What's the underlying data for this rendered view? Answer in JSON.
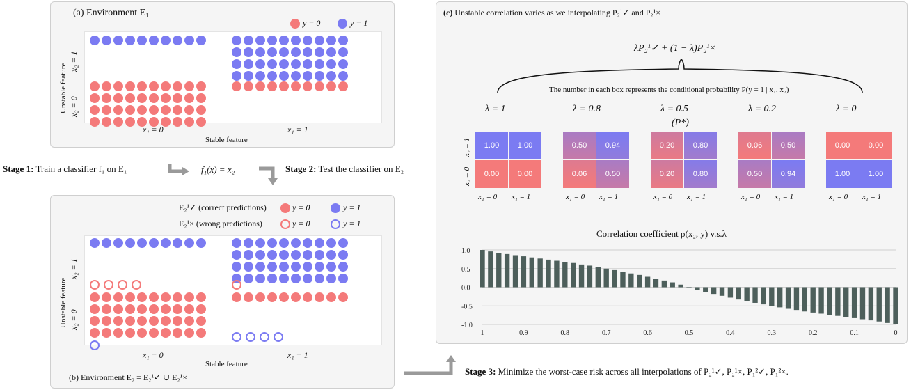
{
  "colors": {
    "red": "#f47a7a",
    "blue": "#7b7bf2",
    "bar": "#4d5f5b",
    "panel": "#f5f5f5"
  },
  "panel_a": {
    "title": "(a) Environment E₁",
    "legend_red": "y = 0",
    "legend_blue": "y = 1",
    "ylabel": "Unstable feature",
    "y_tick_top": "x₂ = 1",
    "y_tick_bottom": "x₂ = 0",
    "x_tick_left": "x₁ = 0",
    "x_tick_right": "x₁ = 1",
    "xlabel": "Stable feature"
  },
  "middle": {
    "stage1_bold": "Stage 1:",
    "stage1_text": "Train a classifier f₁ on E₁",
    "function": "f₁(x) = x₂",
    "stage2_bold": "Stage 2:",
    "stage2_text": "Test the classifier on E₂"
  },
  "panel_b": {
    "legend_correct_label": "E₂¹✓ (correct predictions)",
    "legend_wrong_label": "E₂¹× (wrong predictions)",
    "legend_red": "y = 0",
    "legend_blue": "y = 1",
    "ylabel": "Unstable feature",
    "y_tick_top": "x₂ = 1",
    "y_tick_bottom": "x₂ = 0",
    "x_tick_left": "x₁ = 0",
    "x_tick_right": "x₁ = 1",
    "xlabel": "Stable feature",
    "caption": "(b) Environment E₂ = E₂¹✓ ∪ E₂¹×"
  },
  "panel_c": {
    "title_bold": "(c)",
    "title_text": "Unstable correlation varies as we interpolating P₂¹✓ and  P₂¹×",
    "formula": "λP₂¹✓ + (1 − λ)P₂¹×",
    "note": "The number in each box represents the conditional probability P(y = 1 | x₁, x₂)",
    "ylabel_top": "x₂ = 1",
    "ylabel_bottom": "x₂ = 0",
    "grids": [
      {
        "lambda": "λ = 1",
        "sub": "",
        "top": [
          "1.00",
          "1.00"
        ],
        "bottom": [
          "0.00",
          "0.00"
        ],
        "x0": "x₁ = 0",
        "x1": "x₁ = 1"
      },
      {
        "lambda": "λ = 0.8",
        "sub": "",
        "top": [
          "0.50",
          "0.94"
        ],
        "bottom": [
          "0.06",
          "0.50"
        ],
        "x0": "x₁ = 0",
        "x1": "x₁ = 1"
      },
      {
        "lambda": "λ = 0.5",
        "sub": "(P*)",
        "top": [
          "0.20",
          "0.80"
        ],
        "bottom": [
          "0.20",
          "0.80"
        ],
        "x0": "x₁ = 0",
        "x1": "x₁ = 1"
      },
      {
        "lambda": "λ = 0.2",
        "sub": "",
        "top": [
          "0.06",
          "0.50"
        ],
        "bottom": [
          "0.50",
          "0.94"
        ],
        "x0": "x₁ = 0",
        "x1": "x₁ = 1"
      },
      {
        "lambda": "λ = 0",
        "sub": "",
        "top": [
          "0.00",
          "0.00"
        ],
        "bottom": [
          "1.00",
          "1.00"
        ],
        "x0": "x₁ = 0",
        "x1": "x₁ = 1"
      }
    ],
    "chart_title": "Correlation coefficient ρ(x₂, y) v.s.λ"
  },
  "stage3_bold": "Stage 3:",
  "stage3_text": "Minimize the worst-case risk across all interpolations of  P₂¹✓, P₂¹×, P₁²✓, P₁²×.",
  "chart_data": {
    "type": "bar",
    "title": "Correlation coefficient ρ(x₂, y) v.s.λ",
    "xlabel": "",
    "ylabel": "",
    "x_ticks": [
      "1",
      "0.9",
      "0.8",
      "0.7",
      "0.6",
      "0.5",
      "0.4",
      "0.3",
      "0.2",
      "0.1",
      "0"
    ],
    "y_ticks": [
      "1.0",
      "0.5",
      "0.0",
      "-0.5",
      "-1.0"
    ],
    "ylim": [
      -1,
      1
    ],
    "xlim": [
      1,
      0
    ],
    "x": [
      1.0,
      0.98,
      0.96,
      0.94,
      0.92,
      0.9,
      0.88,
      0.86,
      0.84,
      0.82,
      0.8,
      0.78,
      0.76,
      0.74,
      0.72,
      0.7,
      0.68,
      0.66,
      0.64,
      0.62,
      0.6,
      0.58,
      0.56,
      0.54,
      0.52,
      0.5,
      0.48,
      0.46,
      0.44,
      0.42,
      0.4,
      0.38,
      0.36,
      0.34,
      0.32,
      0.3,
      0.28,
      0.26,
      0.24,
      0.22,
      0.2,
      0.18,
      0.16,
      0.14,
      0.12,
      0.1,
      0.08,
      0.06,
      0.04,
      0.02,
      0.0
    ],
    "values": [
      1.0,
      0.96,
      0.92,
      0.89,
      0.86,
      0.83,
      0.8,
      0.77,
      0.74,
      0.71,
      0.68,
      0.65,
      0.61,
      0.58,
      0.54,
      0.5,
      0.46,
      0.42,
      0.37,
      0.33,
      0.28,
      0.23,
      0.18,
      0.13,
      0.07,
      0.0,
      -0.07,
      -0.13,
      -0.18,
      -0.23,
      -0.28,
      -0.33,
      -0.37,
      -0.42,
      -0.46,
      -0.5,
      -0.54,
      -0.58,
      -0.61,
      -0.65,
      -0.68,
      -0.71,
      -0.74,
      -0.77,
      -0.8,
      -0.83,
      -0.86,
      -0.89,
      -0.92,
      -0.96,
      -1.0
    ],
    "grid": true
  }
}
